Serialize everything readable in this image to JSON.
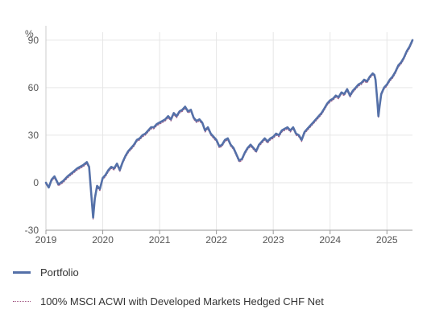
{
  "chart_data": {
    "type": "line",
    "y_unit_label": "%",
    "x_tick_labels": [
      "2019",
      "2020",
      "2021",
      "2022",
      "2023",
      "2024",
      "2025"
    ],
    "x_range": [
      2019.0,
      2025.45
    ],
    "ylim": [
      -30,
      95
    ],
    "y_ticks": [
      -30,
      0,
      30,
      60,
      90
    ],
    "grid": true,
    "legend_position": "bottom",
    "series": [
      {
        "name": "Portfolio",
        "color": "#5470a8",
        "style": "solid",
        "points": [
          [
            2019.0,
            0
          ],
          [
            2019.05,
            -3
          ],
          [
            2019.1,
            2
          ],
          [
            2019.15,
            4
          ],
          [
            2019.22,
            -1
          ],
          [
            2019.3,
            1
          ],
          [
            2019.38,
            4
          ],
          [
            2019.45,
            6
          ],
          [
            2019.55,
            9
          ],
          [
            2019.65,
            11
          ],
          [
            2019.72,
            13
          ],
          [
            2019.76,
            10
          ],
          [
            2019.78,
            1
          ],
          [
            2019.8,
            -8
          ],
          [
            2019.83,
            -22
          ],
          [
            2019.86,
            -10
          ],
          [
            2019.9,
            -2
          ],
          [
            2019.95,
            -4
          ],
          [
            2020.0,
            3
          ],
          [
            2020.05,
            5
          ],
          [
            2020.1,
            8
          ],
          [
            2020.15,
            10
          ],
          [
            2020.2,
            9
          ],
          [
            2020.25,
            12
          ],
          [
            2020.3,
            8
          ],
          [
            2020.35,
            13
          ],
          [
            2020.4,
            17
          ],
          [
            2020.45,
            20
          ],
          [
            2020.5,
            22
          ],
          [
            2020.55,
            24
          ],
          [
            2020.6,
            27
          ],
          [
            2020.65,
            28
          ],
          [
            2020.7,
            30
          ],
          [
            2020.75,
            31
          ],
          [
            2020.8,
            33
          ],
          [
            2020.85,
            35
          ],
          [
            2020.9,
            35
          ],
          [
            2020.95,
            37
          ],
          [
            2021.0,
            38
          ],
          [
            2021.05,
            39
          ],
          [
            2021.1,
            40
          ],
          [
            2021.15,
            42
          ],
          [
            2021.2,
            40
          ],
          [
            2021.25,
            44
          ],
          [
            2021.3,
            42
          ],
          [
            2021.35,
            45
          ],
          [
            2021.4,
            46
          ],
          [
            2021.45,
            48
          ],
          [
            2021.5,
            45
          ],
          [
            2021.55,
            46
          ],
          [
            2021.6,
            41
          ],
          [
            2021.65,
            39
          ],
          [
            2021.7,
            40
          ],
          [
            2021.75,
            38
          ],
          [
            2021.8,
            33
          ],
          [
            2021.85,
            35
          ],
          [
            2021.9,
            31
          ],
          [
            2021.95,
            29
          ],
          [
            2022.0,
            27
          ],
          [
            2022.05,
            23
          ],
          [
            2022.1,
            24
          ],
          [
            2022.15,
            27
          ],
          [
            2022.2,
            28
          ],
          [
            2022.25,
            24
          ],
          [
            2022.3,
            22
          ],
          [
            2022.35,
            18
          ],
          [
            2022.4,
            14
          ],
          [
            2022.45,
            15
          ],
          [
            2022.5,
            19
          ],
          [
            2022.55,
            22
          ],
          [
            2022.6,
            24
          ],
          [
            2022.65,
            22
          ],
          [
            2022.7,
            20
          ],
          [
            2022.75,
            24
          ],
          [
            2022.8,
            26
          ],
          [
            2022.85,
            28
          ],
          [
            2022.9,
            26
          ],
          [
            2022.95,
            28
          ],
          [
            2023.0,
            29
          ],
          [
            2023.05,
            31
          ],
          [
            2023.1,
            30
          ],
          [
            2023.15,
            33
          ],
          [
            2023.2,
            34
          ],
          [
            2023.25,
            35
          ],
          [
            2023.3,
            33
          ],
          [
            2023.35,
            35
          ],
          [
            2023.4,
            31
          ],
          [
            2023.45,
            30
          ],
          [
            2023.5,
            27
          ],
          [
            2023.55,
            32
          ],
          [
            2023.6,
            34
          ],
          [
            2023.65,
            36
          ],
          [
            2023.7,
            38
          ],
          [
            2023.75,
            40
          ],
          [
            2023.8,
            42
          ],
          [
            2023.85,
            44
          ],
          [
            2023.9,
            47
          ],
          [
            2023.95,
            50
          ],
          [
            2024.0,
            52
          ],
          [
            2024.05,
            53
          ],
          [
            2024.1,
            55
          ],
          [
            2024.15,
            54
          ],
          [
            2024.2,
            57
          ],
          [
            2024.25,
            56
          ],
          [
            2024.3,
            59
          ],
          [
            2024.35,
            55
          ],
          [
            2024.4,
            58
          ],
          [
            2024.45,
            60
          ],
          [
            2024.5,
            62
          ],
          [
            2024.55,
            63
          ],
          [
            2024.6,
            65
          ],
          [
            2024.65,
            64
          ],
          [
            2024.7,
            67
          ],
          [
            2024.75,
            69
          ],
          [
            2024.78,
            68
          ],
          [
            2024.8,
            65
          ],
          [
            2024.83,
            52
          ],
          [
            2024.85,
            42
          ],
          [
            2024.87,
            48
          ],
          [
            2024.9,
            56
          ],
          [
            2024.95,
            60
          ],
          [
            2025.0,
            62
          ],
          [
            2025.05,
            65
          ],
          [
            2025.1,
            67
          ],
          [
            2025.15,
            70
          ],
          [
            2025.2,
            74
          ],
          [
            2025.25,
            76
          ],
          [
            2025.3,
            79
          ],
          [
            2025.35,
            83
          ],
          [
            2025.4,
            86
          ],
          [
            2025.45,
            90
          ]
        ]
      },
      {
        "name": "100% MSCI ACWI with Developed Markets Hedged CHF Net",
        "color": "#a35a85",
        "style": "dotted",
        "points": [
          [
            2019.0,
            -1
          ],
          [
            2019.05,
            -3
          ],
          [
            2019.1,
            1
          ],
          [
            2019.15,
            3
          ],
          [
            2019.22,
            -2
          ],
          [
            2019.3,
            0
          ],
          [
            2019.38,
            3
          ],
          [
            2019.45,
            5
          ],
          [
            2019.55,
            8
          ],
          [
            2019.65,
            10
          ],
          [
            2019.72,
            12
          ],
          [
            2019.76,
            9
          ],
          [
            2019.78,
            0
          ],
          [
            2019.8,
            -9
          ],
          [
            2019.83,
            -23
          ],
          [
            2019.86,
            -11
          ],
          [
            2019.9,
            -3
          ],
          [
            2019.95,
            -5
          ],
          [
            2020.0,
            2
          ],
          [
            2020.05,
            4
          ],
          [
            2020.1,
            7
          ],
          [
            2020.15,
            9
          ],
          [
            2020.2,
            8
          ],
          [
            2020.25,
            11
          ],
          [
            2020.3,
            7
          ],
          [
            2020.35,
            12
          ],
          [
            2020.4,
            16
          ],
          [
            2020.45,
            19
          ],
          [
            2020.5,
            21
          ],
          [
            2020.55,
            23
          ],
          [
            2020.6,
            26
          ],
          [
            2020.65,
            27
          ],
          [
            2020.7,
            29
          ],
          [
            2020.75,
            30
          ],
          [
            2020.8,
            32
          ],
          [
            2020.85,
            34
          ],
          [
            2020.9,
            34
          ],
          [
            2020.95,
            36
          ],
          [
            2021.0,
            37
          ],
          [
            2021.05,
            38
          ],
          [
            2021.1,
            39
          ],
          [
            2021.15,
            41
          ],
          [
            2021.2,
            39
          ],
          [
            2021.25,
            43
          ],
          [
            2021.3,
            41
          ],
          [
            2021.35,
            44
          ],
          [
            2021.4,
            45
          ],
          [
            2021.45,
            47
          ],
          [
            2021.5,
            44
          ],
          [
            2021.55,
            45
          ],
          [
            2021.6,
            40
          ],
          [
            2021.65,
            38
          ],
          [
            2021.7,
            39
          ],
          [
            2021.75,
            37
          ],
          [
            2021.8,
            32
          ],
          [
            2021.85,
            34
          ],
          [
            2021.9,
            30
          ],
          [
            2021.95,
            28
          ],
          [
            2022.0,
            26
          ],
          [
            2022.05,
            22
          ],
          [
            2022.1,
            23
          ],
          [
            2022.15,
            26
          ],
          [
            2022.2,
            27
          ],
          [
            2022.25,
            23
          ],
          [
            2022.3,
            21
          ],
          [
            2022.35,
            17
          ],
          [
            2022.4,
            13
          ],
          [
            2022.45,
            14
          ],
          [
            2022.5,
            18
          ],
          [
            2022.55,
            21
          ],
          [
            2022.6,
            23
          ],
          [
            2022.65,
            21
          ],
          [
            2022.7,
            19
          ],
          [
            2022.75,
            23
          ],
          [
            2022.8,
            25
          ],
          [
            2022.85,
            27
          ],
          [
            2022.9,
            25
          ],
          [
            2022.95,
            27
          ],
          [
            2023.0,
            28
          ],
          [
            2023.05,
            30
          ],
          [
            2023.1,
            29
          ],
          [
            2023.15,
            32
          ],
          [
            2023.2,
            33
          ],
          [
            2023.25,
            34
          ],
          [
            2023.3,
            32
          ],
          [
            2023.35,
            34
          ],
          [
            2023.4,
            30
          ],
          [
            2023.45,
            29
          ],
          [
            2023.5,
            26
          ],
          [
            2023.55,
            31
          ],
          [
            2023.6,
            33
          ],
          [
            2023.65,
            35
          ],
          [
            2023.7,
            37
          ],
          [
            2023.75,
            39
          ],
          [
            2023.8,
            41
          ],
          [
            2023.85,
            43
          ],
          [
            2023.9,
            46
          ],
          [
            2023.95,
            49
          ],
          [
            2024.0,
            51
          ],
          [
            2024.05,
            52
          ],
          [
            2024.1,
            54
          ],
          [
            2024.15,
            53
          ],
          [
            2024.2,
            56
          ],
          [
            2024.25,
            55
          ],
          [
            2024.3,
            58
          ],
          [
            2024.35,
            54
          ],
          [
            2024.4,
            57
          ],
          [
            2024.45,
            59
          ],
          [
            2024.5,
            61
          ],
          [
            2024.55,
            62
          ],
          [
            2024.6,
            64
          ],
          [
            2024.65,
            63
          ],
          [
            2024.7,
            66
          ],
          [
            2024.75,
            68
          ],
          [
            2024.78,
            67
          ],
          [
            2024.8,
            64
          ],
          [
            2024.83,
            51
          ],
          [
            2024.85,
            41
          ],
          [
            2024.87,
            47
          ],
          [
            2024.9,
            55
          ],
          [
            2024.95,
            59
          ],
          [
            2025.0,
            61
          ],
          [
            2025.05,
            64
          ],
          [
            2025.1,
            66
          ],
          [
            2025.15,
            69
          ],
          [
            2025.2,
            73
          ],
          [
            2025.25,
            75
          ],
          [
            2025.3,
            78
          ],
          [
            2025.35,
            82
          ],
          [
            2025.4,
            85
          ],
          [
            2025.45,
            89
          ]
        ]
      }
    ]
  }
}
